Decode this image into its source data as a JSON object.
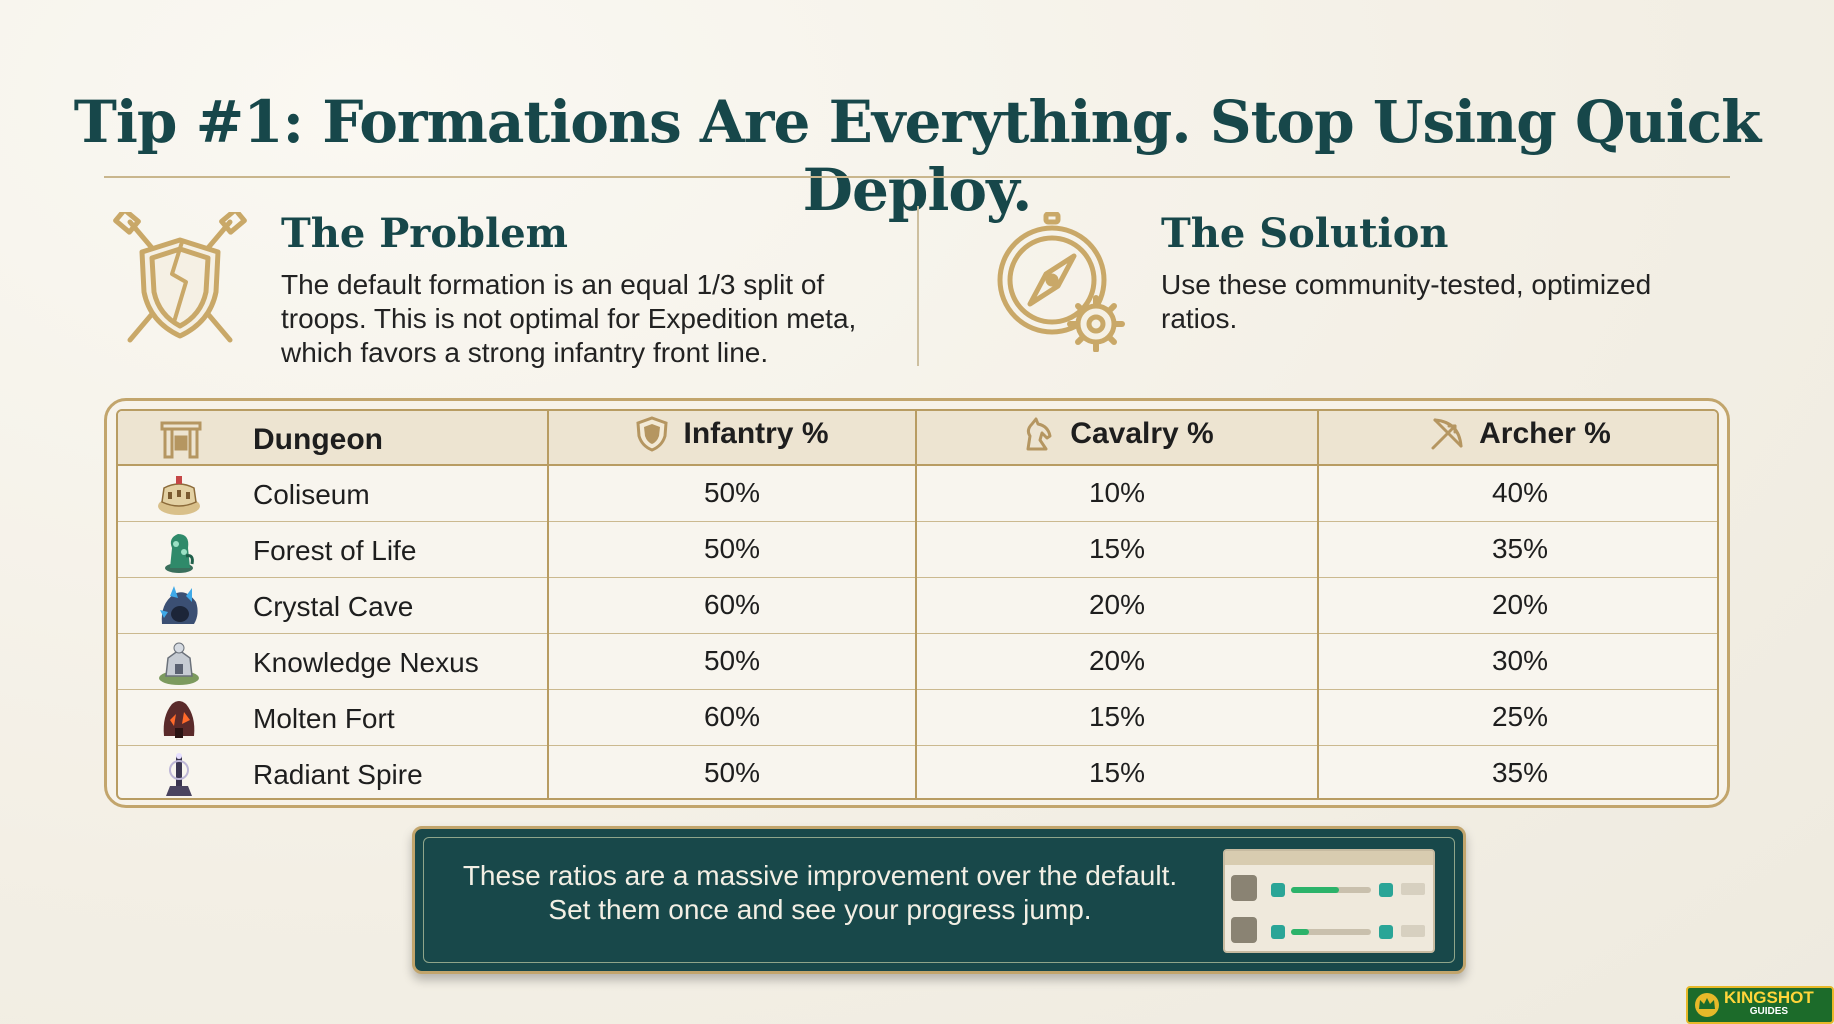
{
  "title": "Tip #1: Formations Are Everything. Stop Using Quick Deploy.",
  "problem": {
    "heading": "The Problem",
    "lines": [
      "The default formation is an equal 1/3 split of",
      "troops. This is not optimal for Expedition meta,",
      "which favors a strong infantry front line."
    ],
    "icon": "broken-shield-swords-icon"
  },
  "solution": {
    "heading": "The Solution",
    "lines": [
      "Use these community-tested, optimized",
      "ratios."
    ],
    "icon": "compass-gear-icon"
  },
  "table": {
    "headers": {
      "dungeon": "Dungeon",
      "infantry": "Infantry %",
      "cavalry": "Cavalry %",
      "archer": "Archer %"
    },
    "rows": [
      {
        "dungeon": "Coliseum",
        "infantry": "50%",
        "cavalry": "10%",
        "archer": "40%"
      },
      {
        "dungeon": "Forest of Life",
        "infantry": "50%",
        "cavalry": "15%",
        "archer": "35%"
      },
      {
        "dungeon": "Crystal Cave",
        "infantry": "60%",
        "cavalry": "20%",
        "archer": "20%"
      },
      {
        "dungeon": "Knowledge Nexus",
        "infantry": "50%",
        "cavalry": "20%",
        "archer": "30%"
      },
      {
        "dungeon": "Molten Fort",
        "infantry": "60%",
        "cavalry": "15%",
        "archer": "25%"
      },
      {
        "dungeon": "Radiant Spire",
        "infantry": "50%",
        "cavalry": "15%",
        "archer": "35%"
      }
    ]
  },
  "callout": {
    "line1": "These ratios are a massive improvement over the default.",
    "line2": "Set them once and see your progress jump."
  },
  "logo": {
    "main": "KINGSHOT",
    "sub": "GUIDES"
  },
  "colors": {
    "title": "#17474a",
    "gold": "#c2a56c",
    "callout_bg": "#18484a"
  }
}
